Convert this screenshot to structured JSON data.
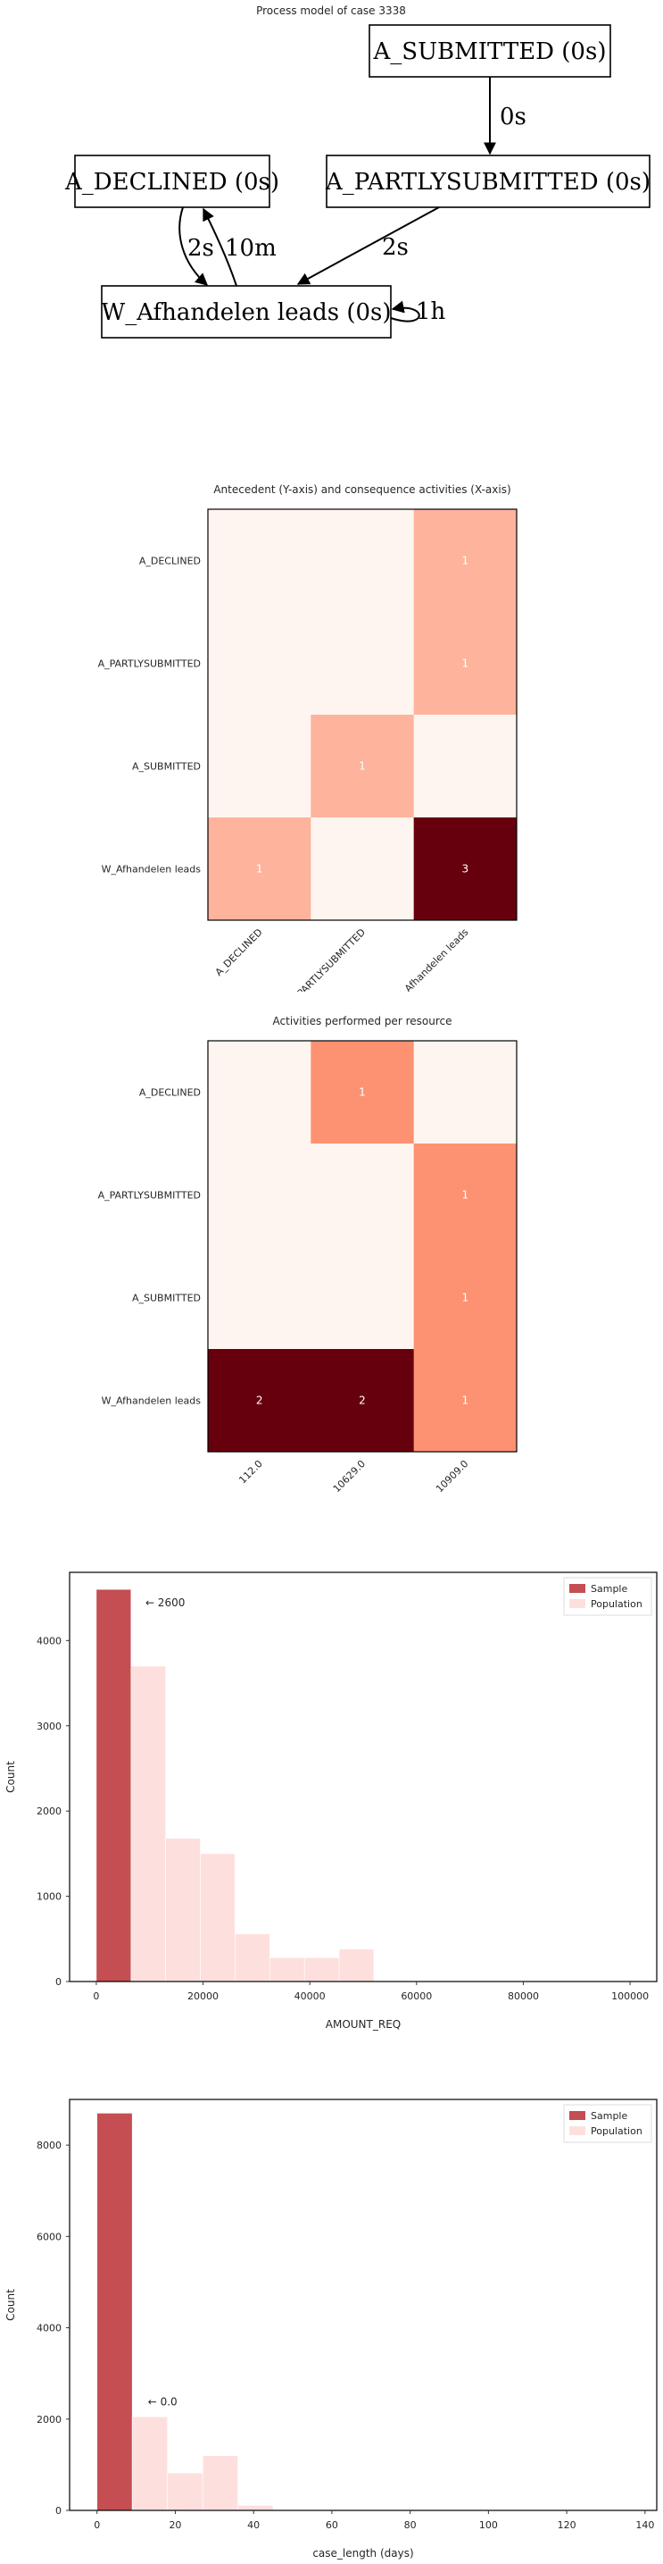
{
  "process_model": {
    "title": "Process model of case 3338",
    "nodes": [
      {
        "id": "sub",
        "label": "A_SUBMITTED (0s)"
      },
      {
        "id": "dec",
        "label": "A_DECLINED (0s)"
      },
      {
        "id": "part",
        "label": "A_PARTLYSUBMITTED (0s)"
      },
      {
        "id": "w",
        "label": "W_Afhandelen leads (0s)"
      }
    ],
    "edges": [
      {
        "from": "sub",
        "to": "part",
        "label": "0s"
      },
      {
        "from": "dec",
        "to": "w",
        "label": "2s"
      },
      {
        "from": "w",
        "to": "dec",
        "label": "10m"
      },
      {
        "from": "part",
        "to": "w",
        "label": "2s"
      },
      {
        "from": "w",
        "to": "w",
        "label": "1h"
      }
    ]
  },
  "chart_data": [
    {
      "type": "heatmap",
      "title": "Antecedent (Y-axis) and consequence activities (X-axis)",
      "x_categories": [
        "A_DECLINED",
        "A_PARTLYSUBMITTED",
        "W_Afhandelen leads"
      ],
      "y_categories": [
        "A_DECLINED",
        "A_PARTLYSUBMITTED",
        "A_SUBMITTED",
        "W_Afhandelen leads"
      ],
      "values": [
        [
          0,
          0,
          1
        ],
        [
          0,
          0,
          1
        ],
        [
          0,
          1,
          0
        ],
        [
          1,
          0,
          3
        ]
      ],
      "max": 3,
      "colors": {
        "low": "#fff5f0",
        "high": "#67000d"
      }
    },
    {
      "type": "heatmap",
      "title": "Activities performed per resource",
      "x_categories": [
        "112.0",
        "10629.0",
        "10909.0"
      ],
      "y_categories": [
        "A_DECLINED",
        "A_PARTLYSUBMITTED",
        "A_SUBMITTED",
        "W_Afhandelen leads"
      ],
      "values": [
        [
          0,
          1,
          0
        ],
        [
          0,
          0,
          1
        ],
        [
          0,
          0,
          1
        ],
        [
          2,
          2,
          1
        ]
      ],
      "max": 2,
      "colors": {
        "low": "#fff5f0",
        "high": "#67000d"
      }
    },
    {
      "type": "bar",
      "title": "",
      "xlabel": "AMOUNT_REQ",
      "ylabel": "Count",
      "xlim": [
        -5000,
        105000
      ],
      "ylim": [
        0,
        4800
      ],
      "xticks": [
        0,
        20000,
        40000,
        60000,
        80000,
        100000
      ],
      "yticks": [
        0,
        1000,
        2000,
        3000,
        4000
      ],
      "legend": [
        "Sample",
        "Population"
      ],
      "legend_position": "top-right",
      "annotation": {
        "text": "← 2600",
        "x": 9200,
        "y": 4400
      },
      "series": [
        {
          "name": "Sample",
          "color": "#c44e52",
          "bins": [
            {
              "x0": 0,
              "x1": 6500,
              "value": 4600
            }
          ]
        },
        {
          "name": "Population",
          "color": "#fde0dd",
          "bins": [
            {
              "x0": 6500,
              "x1": 13000,
              "value": 3700
            },
            {
              "x0": 13000,
              "x1": 19500,
              "value": 1680
            },
            {
              "x0": 19500,
              "x1": 26000,
              "value": 1500
            },
            {
              "x0": 26000,
              "x1": 32500,
              "value": 560
            },
            {
              "x0": 32500,
              "x1": 39000,
              "value": 280
            },
            {
              "x0": 39000,
              "x1": 45500,
              "value": 280
            },
            {
              "x0": 45500,
              "x1": 52000,
              "value": 380
            }
          ]
        }
      ]
    },
    {
      "type": "bar",
      "title": "",
      "xlabel": "case_length (days)",
      "ylabel": "Count",
      "xlim": [
        -7,
        143
      ],
      "ylim": [
        0,
        9000
      ],
      "xticks": [
        0,
        20,
        40,
        60,
        80,
        100,
        120,
        140
      ],
      "yticks": [
        0,
        2000,
        4000,
        6000,
        8000
      ],
      "legend": [
        "Sample",
        "Population"
      ],
      "legend_position": "top-right",
      "annotation": {
        "text": "← 0.0",
        "x": 13,
        "y": 2300
      },
      "series": [
        {
          "name": "Sample",
          "color": "#c44e52",
          "bins": [
            {
              "x0": 0,
              "x1": 9,
              "value": 8700
            }
          ]
        },
        {
          "name": "Population",
          "color": "#fde0dd",
          "bins": [
            {
              "x0": 9,
              "x1": 18,
              "value": 2050
            },
            {
              "x0": 18,
              "x1": 27,
              "value": 820
            },
            {
              "x0": 27,
              "x1": 36,
              "value": 1200
            },
            {
              "x0": 36,
              "x1": 45,
              "value": 110
            }
          ]
        }
      ]
    }
  ]
}
